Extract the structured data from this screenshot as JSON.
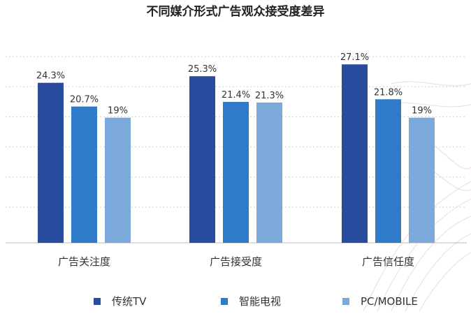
{
  "chart_data": {
    "type": "bar",
    "title": "不同媒介形式广告观众接受度差异",
    "categories": [
      "广告关注度",
      "广告接受度",
      "广告信任度"
    ],
    "series": [
      {
        "name": "传统TV",
        "values": [
          24.3,
          25.3,
          27.1
        ],
        "labels": [
          "24.3%",
          "25.3%",
          "27.1%"
        ],
        "color": "#2a4c9e"
      },
      {
        "name": "智能电视",
        "values": [
          20.7,
          21.4,
          21.8
        ],
        "labels": [
          "20.7%",
          "21.4%",
          "21.8%"
        ],
        "color": "#2f7bc9"
      },
      {
        "name": "PC/MOBILE",
        "values": [
          19,
          21.3,
          19
        ],
        "labels": [
          "19%",
          "21.3%",
          "19%"
        ],
        "color": "#7ba9db"
      }
    ],
    "ylim": [
      0,
      32
    ],
    "grid": true,
    "legend_position": "bottom"
  }
}
